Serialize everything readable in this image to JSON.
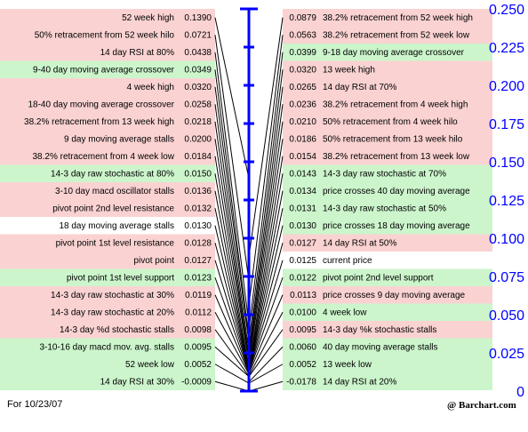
{
  "chart_data": {
    "type": "table",
    "ylim": [
      0,
      0.25
    ],
    "y_ticks": [
      "0",
      "0.025",
      "0.050",
      "0.075",
      "0.100",
      "0.125",
      "0.150",
      "0.175",
      "0.200",
      "0.225",
      "0.250"
    ],
    "colors": {
      "red": "#fad2d2",
      "green": "#ccf5cc",
      "white": "#ffffff",
      "axis": "#0000ff",
      "lines": "#000000"
    },
    "left": [
      {
        "label": "52 week high",
        "value": "0.1390",
        "v": 0.139,
        "color": "red"
      },
      {
        "label": "50% retracement from 52 week hilo",
        "value": "0.0721",
        "v": 0.0721,
        "color": "red"
      },
      {
        "label": "14 day RSI at 80%",
        "value": "0.0438",
        "v": 0.0438,
        "color": "red"
      },
      {
        "label": "9-40 day moving average crossover",
        "value": "0.0349",
        "v": 0.0349,
        "color": "green"
      },
      {
        "label": "4 week high",
        "value": "0.0320",
        "v": 0.032,
        "color": "red"
      },
      {
        "label": "18-40 day moving average crossover",
        "value": "0.0258",
        "v": 0.0258,
        "color": "red"
      },
      {
        "label": "38.2% retracement from 13 week high",
        "value": "0.0218",
        "v": 0.0218,
        "color": "red"
      },
      {
        "label": "9 day moving average stalls",
        "value": "0.0200",
        "v": 0.02,
        "color": "red"
      },
      {
        "label": "38.2% retracement from 4 week low",
        "value": "0.0184",
        "v": 0.0184,
        "color": "red"
      },
      {
        "label": "14-3 day raw stochastic at 80%",
        "value": "0.0150",
        "v": 0.015,
        "color": "green"
      },
      {
        "label": "3-10 day macd oscillator stalls",
        "value": "0.0136",
        "v": 0.0136,
        "color": "red"
      },
      {
        "label": "pivot point 2nd level resistance",
        "value": "0.0132",
        "v": 0.0132,
        "color": "red"
      },
      {
        "label": "18 day moving average stalls",
        "value": "0.0130",
        "v": 0.013,
        "color": "white"
      },
      {
        "label": "pivot point 1st level resistance",
        "value": "0.0128",
        "v": 0.0128,
        "color": "red"
      },
      {
        "label": "pivot point",
        "value": "0.0127",
        "v": 0.0127,
        "color": "red"
      },
      {
        "label": "pivot point 1st level support",
        "value": "0.0123",
        "v": 0.0123,
        "color": "green"
      },
      {
        "label": "14-3 day raw stochastic at 30%",
        "value": "0.0119",
        "v": 0.0119,
        "color": "red"
      },
      {
        "label": "14-3 day raw stochastic at 20%",
        "value": "0.0112",
        "v": 0.0112,
        "color": "red"
      },
      {
        "label": "14-3 day %d stochastic stalls",
        "value": "0.0098",
        "v": 0.0098,
        "color": "red"
      },
      {
        "label": "3-10-16 day macd mov. avg. stalls",
        "value": "0.0095",
        "v": 0.0095,
        "color": "green"
      },
      {
        "label": "52 week low",
        "value": "0.0052",
        "v": 0.0052,
        "color": "green"
      },
      {
        "label": "14 day RSI at 30%",
        "value": "-0.0009",
        "v": -0.0009,
        "color": "green"
      }
    ],
    "right": [
      {
        "label": "38.2% retracement from 52 week high",
        "value": "0.0879",
        "v": 0.0879,
        "color": "red"
      },
      {
        "label": "38.2% retracement from 52 week low",
        "value": "0.0563",
        "v": 0.0563,
        "color": "red"
      },
      {
        "label": "9-18 day moving average crossover",
        "value": "0.0399",
        "v": 0.0399,
        "color": "green"
      },
      {
        "label": "13 week high",
        "value": "0.0320",
        "v": 0.032,
        "color": "red"
      },
      {
        "label": "14 day RSI at 70%",
        "value": "0.0265",
        "v": 0.0265,
        "color": "red"
      },
      {
        "label": "38.2% retracement from 4 week high",
        "value": "0.0236",
        "v": 0.0236,
        "color": "red"
      },
      {
        "label": "50% retracement from 4 week hilo",
        "value": "0.0210",
        "v": 0.021,
        "color": "red"
      },
      {
        "label": "50% retracement from 13 week hilo",
        "value": "0.0186",
        "v": 0.0186,
        "color": "red"
      },
      {
        "label": "38.2% retracement from 13 week low",
        "value": "0.0154",
        "v": 0.0154,
        "color": "red"
      },
      {
        "label": "14-3 day raw stochastic at 70%",
        "value": "0.0143",
        "v": 0.0143,
        "color": "green"
      },
      {
        "label": "price crosses 40 day moving average",
        "value": "0.0134",
        "v": 0.0134,
        "color": "green"
      },
      {
        "label": "14-3 day raw stochastic at 50%",
        "value": "0.0131",
        "v": 0.0131,
        "color": "green"
      },
      {
        "label": "price crosses 18 day moving average",
        "value": "0.0130",
        "v": 0.013,
        "color": "green"
      },
      {
        "label": "14 day RSI at 50%",
        "value": "0.0127",
        "v": 0.0127,
        "color": "red"
      },
      {
        "label": "current price",
        "value": "0.0125",
        "v": 0.0125,
        "color": "white"
      },
      {
        "label": "pivot point 2nd level support",
        "value": "0.0122",
        "v": 0.0122,
        "color": "green"
      },
      {
        "label": "price crosses 9 day moving average",
        "value": "0.0113",
        "v": 0.0113,
        "color": "red"
      },
      {
        "label": "4 week low",
        "value": "0.0100",
        "v": 0.01,
        "color": "green"
      },
      {
        "label": "14-3 day %k stochastic stalls",
        "value": "0.0095",
        "v": 0.0095,
        "color": "red"
      },
      {
        "label": "40 day moving average stalls",
        "value": "0.0060",
        "v": 0.006,
        "color": "green"
      },
      {
        "label": "13 week low",
        "value": "0.0052",
        "v": 0.0052,
        "color": "green"
      },
      {
        "label": "14 day RSI at 20%",
        "value": "-0.0178",
        "v": -0.0178,
        "color": "green"
      }
    ]
  },
  "footer": {
    "date": "For 10/23/07",
    "credit": "@ Barchart.com"
  }
}
